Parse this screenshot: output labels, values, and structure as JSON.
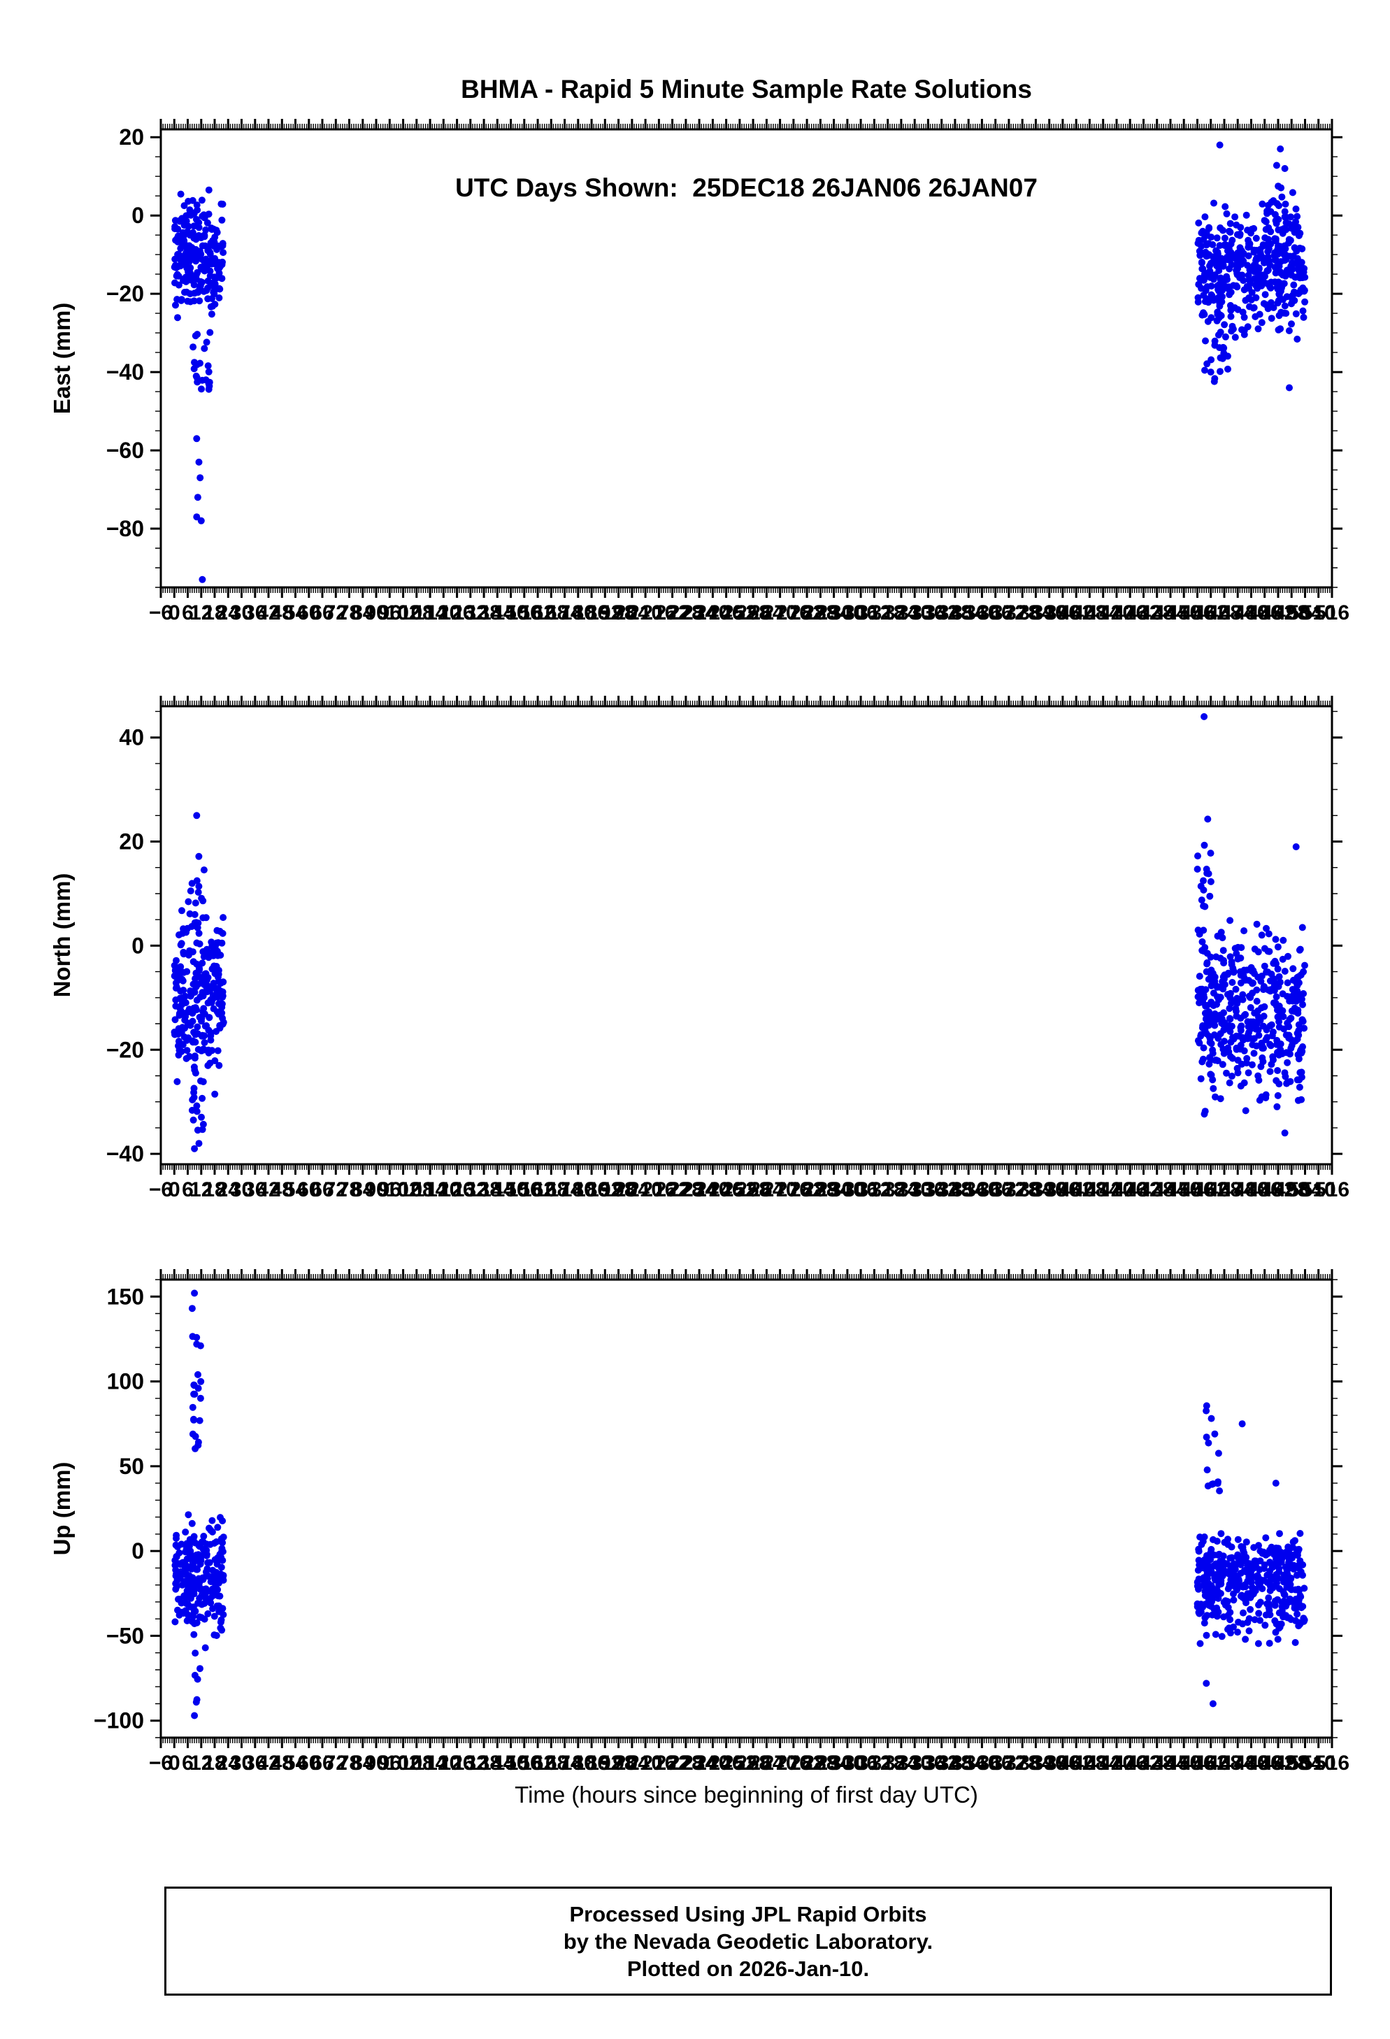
{
  "title_line1": "BHMA - Rapid 5 Minute Sample Rate Solutions",
  "title_line2": "UTC Days Shown:  25DEC18 26JAN06 26JAN07",
  "footer": {
    "line1": "Processed Using JPL Rapid Orbits",
    "line2": "by the Nevada Geodetic Laboratory.",
    "line3": "Plotted on 2026-Jan-10."
  },
  "colors": {
    "points": "#0000ee",
    "frame": "#000000",
    "text": "#000000",
    "background": "#ffffff"
  },
  "chart_data": {
    "type": "scatter",
    "title": "BHMA - Rapid 5 Minute Sample Rate Solutions — UTC Days Shown: 25DEC18 26JAN06 26JAN07",
    "legend": "none",
    "grid": false,
    "x_axis": {
      "label": "Time (hours since beginning of first day UTC)",
      "min": -6,
      "max": 516,
      "major_step": 6,
      "minor_step": 1,
      "note_visible_data_windows_hours": [
        [
          0,
          24
        ],
        [
          456,
          504
        ]
      ]
    },
    "panels": [
      {
        "ylabel": "East (mm)",
        "ylim": [
          -95,
          22
        ],
        "yticks": [
          20,
          0,
          -20,
          -40,
          -60,
          -80
        ],
        "y_minor_step": 5,
        "clusters": [
          {
            "x0": 0,
            "x1": 22,
            "n": 230,
            "mean": -11,
            "sd": 7,
            "min": -27,
            "max": 8
          },
          {
            "x0": 8,
            "x1": 16,
            "n": 22,
            "mean": -36,
            "sd": 5,
            "min": -47,
            "max": -27
          },
          {
            "x0": 456,
            "x1": 504,
            "n": 430,
            "mean": -14,
            "sd": 7.5,
            "min": -33,
            "max": 4
          },
          {
            "x0": 459,
            "x1": 470,
            "n": 25,
            "mean": -33,
            "sd": 5,
            "min": -45,
            "max": -24
          },
          {
            "x0": 486,
            "x1": 500,
            "n": 20,
            "mean": 2,
            "sd": 5,
            "min": -5,
            "max": 16
          }
        ],
        "outliers": [
          [
            10,
            -57
          ],
          [
            11,
            -63
          ],
          [
            11.5,
            -67
          ],
          [
            10.5,
            -72
          ],
          [
            10,
            -77
          ],
          [
            12,
            -78
          ],
          [
            12.5,
            -93
          ],
          [
            466,
            18
          ],
          [
            493,
            17
          ],
          [
            495,
            12
          ],
          [
            497,
            -44
          ],
          [
            462,
            -40
          ]
        ]
      },
      {
        "ylabel": "North (mm)",
        "ylim": [
          -42,
          46
        ],
        "yticks": [
          40,
          20,
          0,
          -20,
          -40
        ],
        "y_minor_step": 5,
        "clusters": [
          {
            "x0": 0,
            "x1": 22,
            "n": 240,
            "mean": -10,
            "sd": 8,
            "min": -30,
            "max": 7
          },
          {
            "x0": 6,
            "x1": 14,
            "n": 18,
            "mean": 10,
            "sd": 6,
            "min": 2,
            "max": 25
          },
          {
            "x0": 8,
            "x1": 14,
            "n": 12,
            "mean": -33,
            "sd": 3,
            "min": -39,
            "max": -28
          },
          {
            "x0": 456,
            "x1": 504,
            "n": 430,
            "mean": -13,
            "sd": 8,
            "min": -33,
            "max": 5
          },
          {
            "x0": 456,
            "x1": 464,
            "n": 16,
            "mean": 12,
            "sd": 6,
            "min": 3,
            "max": 26
          }
        ],
        "outliers": [
          [
            459,
            44
          ],
          [
            500,
            19
          ],
          [
            495,
            -36
          ],
          [
            10,
            25
          ],
          [
            9,
            -39
          ],
          [
            11,
            -38
          ]
        ]
      },
      {
        "ylabel": "Up (mm)",
        "ylim": [
          -110,
          160
        ],
        "yticks": [
          150,
          100,
          50,
          0,
          -50,
          -100
        ],
        "y_minor_step": 10,
        "clusters": [
          {
            "x0": 0,
            "x1": 22,
            "n": 240,
            "mean": -15,
            "sd": 17,
            "min": -58,
            "max": 22
          },
          {
            "x0": 8,
            "x1": 12,
            "n": 20,
            "mean": 95,
            "sd": 35,
            "min": 40,
            "max": 155
          },
          {
            "x0": 9,
            "x1": 12,
            "n": 6,
            "mean": -75,
            "sd": 10,
            "min": -98,
            "max": -60
          },
          {
            "x0": 456,
            "x1": 504,
            "n": 430,
            "mean": -18,
            "sd": 16,
            "min": -55,
            "max": 12
          },
          {
            "x0": 458,
            "x1": 466,
            "n": 14,
            "mean": 55,
            "sd": 20,
            "min": 25,
            "max": 93
          }
        ],
        "outliers": [
          [
            9,
            152
          ],
          [
            8,
            143
          ],
          [
            10,
            122
          ],
          [
            463,
            -90
          ],
          [
            476,
            75
          ],
          [
            491,
            40
          ],
          [
            460,
            -78
          ],
          [
            9,
            -97
          ]
        ]
      }
    ]
  }
}
